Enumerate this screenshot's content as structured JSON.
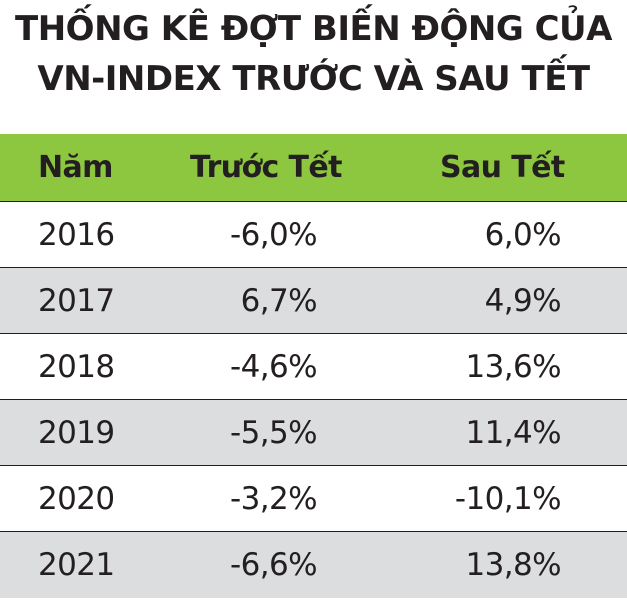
{
  "colors": {
    "header_bg": "#8dc63f",
    "stripe_bg": "#dcdddf",
    "row_bg": "#ffffff",
    "text": "#231f20",
    "rule": "#231f20"
  },
  "chart_data": {
    "type": "table",
    "title": "THỐNG KÊ ĐỢT BIẾN ĐỘNG CỦA VN-INDEX TRƯỚC VÀ SAU TẾT",
    "title_lines": [
      "THỐNG KÊ ĐỢT BIẾN ĐỘNG CỦA",
      "VN-INDEX TRƯỚC VÀ SAU TẾT"
    ],
    "columns": [
      "Năm",
      "Trước Tết",
      "Sau Tết"
    ],
    "rows": [
      [
        "2016",
        "-6,0%",
        "6,0%"
      ],
      [
        "2017",
        "6,7%",
        "4,9%"
      ],
      [
        "2018",
        "-4,6%",
        "13,6%"
      ],
      [
        "2019",
        "-5,5%",
        "11,4%"
      ],
      [
        "2020",
        "-3,2%",
        "-10,1%"
      ],
      [
        "2021",
        "-6,6%",
        "13,8%"
      ]
    ]
  }
}
